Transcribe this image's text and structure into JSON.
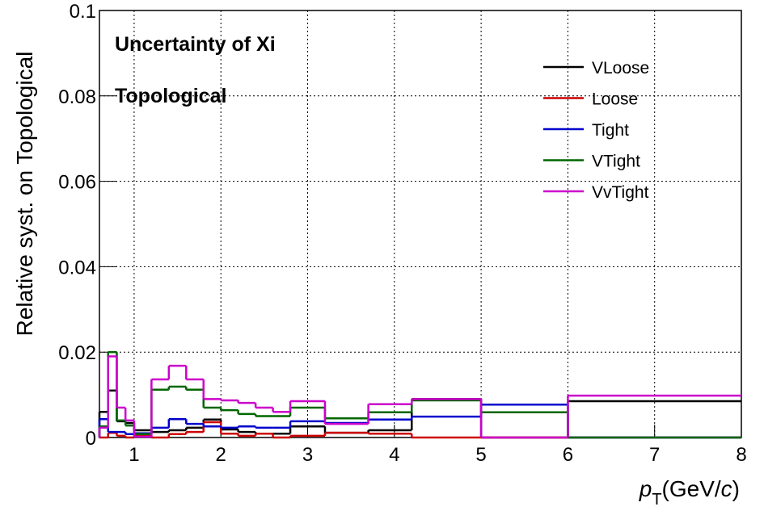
{
  "chart_data": {
    "type": "histogram",
    "title": "Uncertainty of Xi",
    "subtitle": "Topological",
    "y_label": "Relative syst. on Topological",
    "x_label_parts": [
      "p",
      "T",
      "(GeV/",
      "c",
      ")"
    ],
    "bins": [
      0.6,
      0.7,
      0.8,
      0.9,
      1.0,
      1.2,
      1.4,
      1.6,
      1.8,
      2.0,
      2.2,
      2.4,
      2.6,
      2.8,
      3.2,
      3.7,
      4.2,
      5,
      6,
      8
    ],
    "series": [
      {
        "name": "VLoose",
        "color": "#000000",
        "values": [
          0.006,
          0.011,
          0.0038,
          0.0034,
          0.0017,
          0.0013,
          0.0017,
          0.0023,
          0.0042,
          0.0019,
          0.0013,
          0.0009,
          0.0009,
          0.0026,
          0.0011,
          0.0017,
          0.009,
          0,
          0.0085
        ]
      },
      {
        "name": "Loose",
        "color": "#cc0000",
        "values": [
          0,
          0.0011,
          0.0004,
          0,
          0.0004,
          0,
          0.0008,
          0.0013,
          0.0036,
          0.0009,
          0.0004,
          0.0009,
          0,
          0.0004,
          0.0011,
          0.0009,
          0,
          0,
          0
        ]
      },
      {
        "name": "Tight",
        "color": "#0000cc",
        "values": [
          0.0043,
          0.0013,
          0.0013,
          0.0008,
          0.001,
          0.0023,
          0.0043,
          0.0032,
          0.0026,
          0.0023,
          0.0026,
          0.0023,
          0.0023,
          0.0038,
          0.0034,
          0.0042,
          0.0049,
          0.0077,
          0
        ]
      },
      {
        "name": "VTight",
        "color": "#006600",
        "values": [
          0.0026,
          0.02,
          0.004,
          0.0028,
          0.0008,
          0.0112,
          0.0119,
          0.0112,
          0.007,
          0.0064,
          0.0055,
          0.005,
          0.005,
          0.007,
          0.0045,
          0.0059,
          0.0087,
          0.0059,
          0
        ]
      },
      {
        "name": "VvTight",
        "color": "#cc00cc",
        "values": [
          0.0023,
          0.019,
          0.007,
          0.004,
          0.0002,
          0.0136,
          0.0168,
          0.0136,
          0.009,
          0.0087,
          0.0081,
          0.007,
          0.006,
          0.0085,
          0.0032,
          0.0078,
          0.009,
          0,
          0.0098
        ]
      }
    ],
    "xlim": [
      0.6,
      8
    ],
    "ylim": [
      0,
      0.1
    ],
    "xticks": [
      1,
      2,
      3,
      4,
      5,
      6,
      7,
      8
    ],
    "yticks": [
      0,
      0.02,
      0.04,
      0.06,
      0.08,
      0.1
    ],
    "grid": true,
    "legend": "top-right"
  }
}
